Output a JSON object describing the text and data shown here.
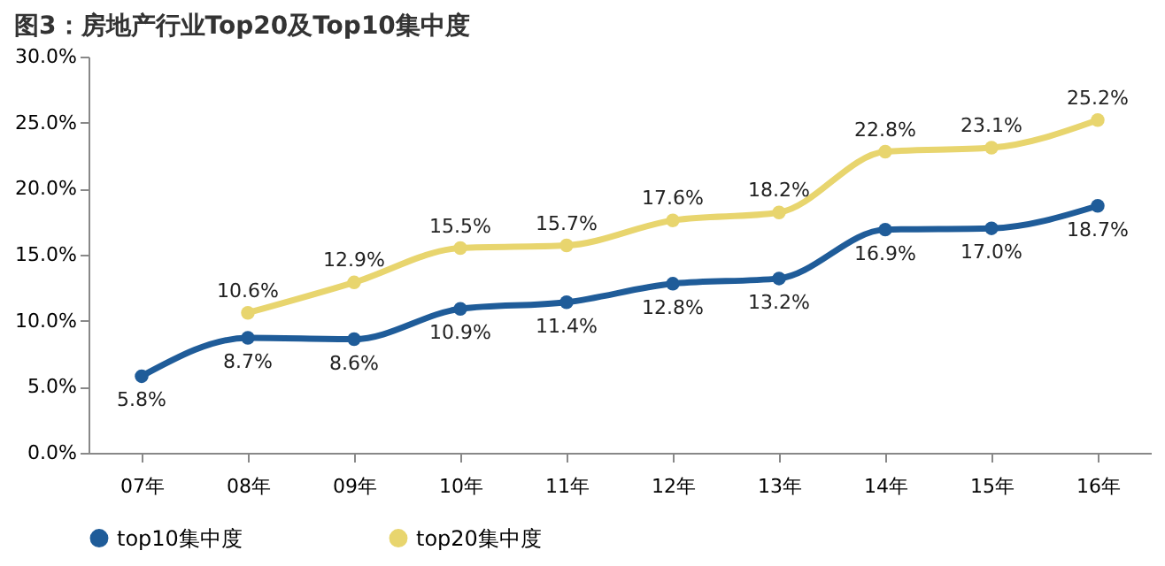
{
  "chart_data": {
    "type": "line",
    "title": "图3：房地产行业Top20及Top10集中度",
    "categories": [
      "07年",
      "08年",
      "09年",
      "10年",
      "11年",
      "12年",
      "13年",
      "14年",
      "15年",
      "16年"
    ],
    "series": [
      {
        "name": "top10集中度",
        "color": "#1f5c99",
        "values": [
          5.8,
          8.7,
          8.6,
          10.9,
          11.4,
          12.8,
          13.2,
          16.9,
          17.0,
          18.7
        ],
        "value_labels": [
          "5.8%",
          "8.7%",
          "8.6%",
          "10.9%",
          "11.4%",
          "12.8%",
          "13.2%",
          "16.9%",
          "17.0%",
          "18.7%"
        ]
      },
      {
        "name": "top20集中度",
        "color": "#e8d56e",
        "values": [
          null,
          10.6,
          12.9,
          15.5,
          15.7,
          17.6,
          18.2,
          22.8,
          23.1,
          25.2
        ],
        "value_labels": [
          null,
          "10.6%",
          "12.9%",
          "15.5%",
          "15.7%",
          "17.6%",
          "18.2%",
          "22.8%",
          "23.1%",
          "25.2%"
        ]
      }
    ],
    "ylim": [
      0,
      30
    ],
    "yticks": [
      {
        "value": 0,
        "label": "0.0%"
      },
      {
        "value": 5,
        "label": "5.0%"
      },
      {
        "value": 10,
        "label": "10.0%"
      },
      {
        "value": 15,
        "label": "15.0%"
      },
      {
        "value": 20,
        "label": "20.0%"
      },
      {
        "value": 25,
        "label": "25.0%"
      },
      {
        "value": 30,
        "label": "30.0%"
      }
    ],
    "marker": "circle",
    "line_style": "solid",
    "grid": false,
    "legend": "bottom"
  }
}
